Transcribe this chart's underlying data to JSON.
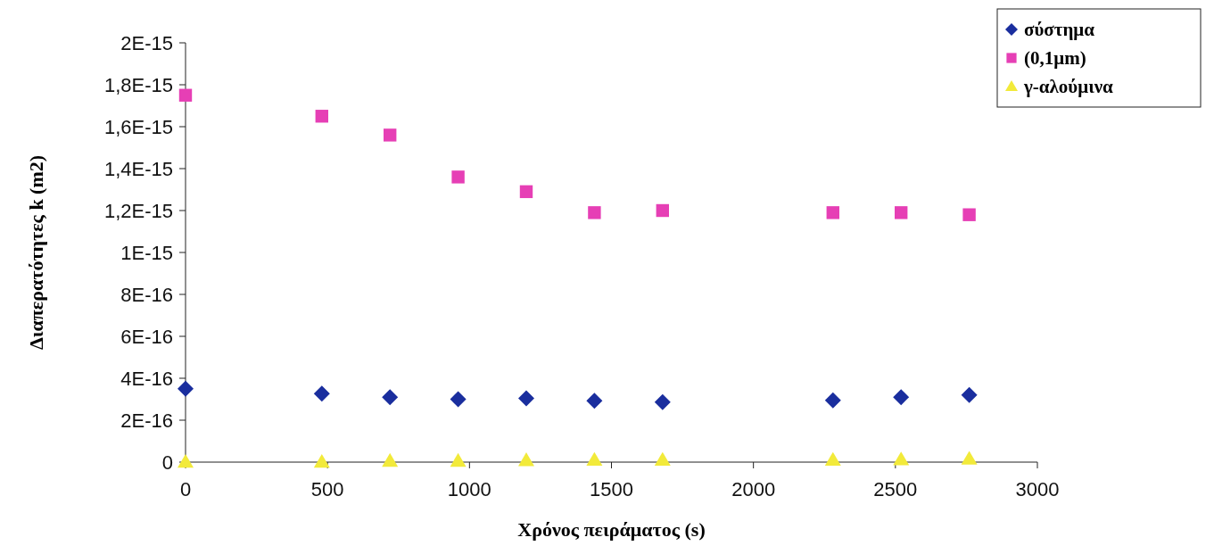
{
  "chart_data": {
    "type": "scatter",
    "xlabel": "Χρόνος πειράματος (s)",
    "ylabel": "Διαπερατότητες k (m2)",
    "x": [
      0,
      480,
      720,
      960,
      1200,
      1440,
      1680,
      2280,
      2520,
      2760
    ],
    "xlim": [
      0,
      3000
    ],
    "xticks": [
      0,
      500,
      1000,
      1500,
      2000,
      2500,
      3000
    ],
    "ylim": [
      0,
      2e-15
    ],
    "yticks": [
      {
        "value": 0,
        "label": "0"
      },
      {
        "value": 2e-16,
        "label": "2E-16"
      },
      {
        "value": 4e-16,
        "label": "4E-16"
      },
      {
        "value": 6e-16,
        "label": "6E-16"
      },
      {
        "value": 8e-16,
        "label": "8E-16"
      },
      {
        "value": 1e-15,
        "label": "1E-15"
      },
      {
        "value": 1.2e-15,
        "label": "1,2E-15"
      },
      {
        "value": 1.4e-15,
        "label": "1,4E-15"
      },
      {
        "value": 1.6e-15,
        "label": "1,6E-15"
      },
      {
        "value": 1.8e-15,
        "label": "1,8E-15"
      },
      {
        "value": 2e-15,
        "label": "2E-15"
      }
    ],
    "grid": false,
    "legend": "top right",
    "series": [
      {
        "name": "σύστημα",
        "color": "#1a2e9e",
        "marker": "diamond",
        "values": [
          3.5e-16,
          3.27e-16,
          3.1e-16,
          3e-16,
          3.04e-16,
          2.93e-16,
          2.86e-16,
          2.95e-16,
          3.1e-16,
          3.2e-16
        ]
      },
      {
        "name": "(0,1μm)",
        "color": "#e63fb5",
        "marker": "square",
        "values": [
          1.75e-15,
          1.65e-15,
          1.56e-15,
          1.36e-15,
          1.29e-15,
          1.19e-15,
          1.2e-15,
          1.19e-15,
          1.19e-15,
          1.18e-15
        ]
      },
      {
        "name": "γ-αλούμινα",
        "color": "#f2ea3a",
        "marker": "triangle",
        "values": [
          0,
          0,
          5e-18,
          5e-18,
          8e-18,
          1e-17,
          1e-17,
          1e-17,
          1.2e-17,
          1.5e-17
        ]
      }
    ]
  }
}
